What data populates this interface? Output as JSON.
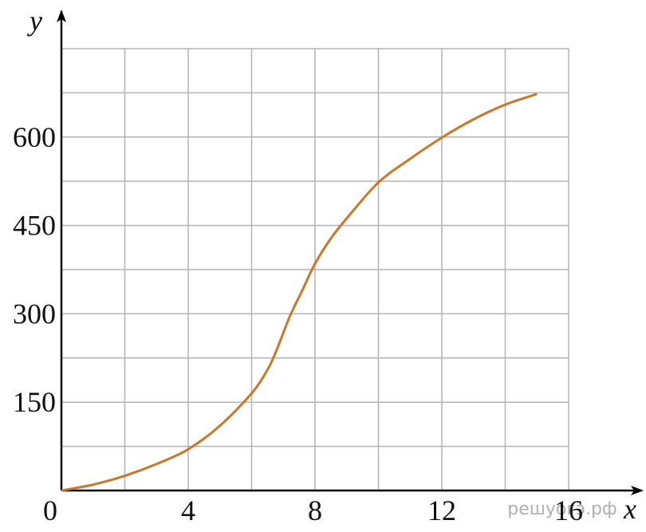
{
  "chart_data": {
    "type": "line",
    "x_label": "x",
    "y_label": "y",
    "watermark": "решуогэ.рф",
    "series": [
      {
        "color": "#c8782a",
        "x": [
          0,
          1,
          2,
          3,
          4,
          5,
          6,
          6.5,
          6.8,
          7.2,
          7.6,
          8,
          8.5,
          9,
          10,
          11,
          12,
          13,
          14,
          15
        ],
        "values": [
          0,
          10,
          25,
          45,
          70,
          110,
          165,
          205,
          240,
          295,
          340,
          385,
          428,
          462,
          523,
          563,
          599,
          630,
          655,
          673
        ]
      }
    ],
    "xlim": [
      0,
      16
    ],
    "ylim": [
      0,
      750
    ],
    "xticks": [
      0,
      4,
      8,
      12,
      16
    ],
    "yticks": [
      150,
      300,
      450,
      600
    ],
    "grid": true
  }
}
